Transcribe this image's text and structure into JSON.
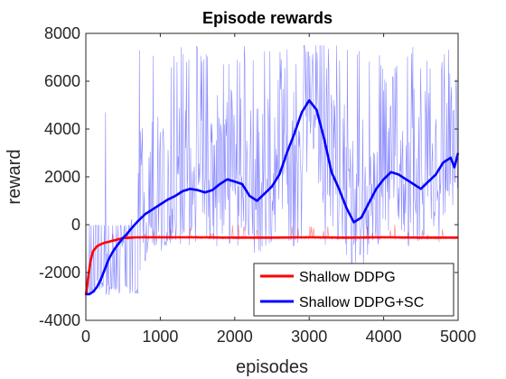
{
  "chart_data": {
    "type": "line",
    "title": "Episode rewards",
    "xlabel": "episodes",
    "ylabel": "reward",
    "xlim": [
      0,
      5000
    ],
    "ylim": [
      -4000,
      8000
    ],
    "xticks": [
      0,
      1000,
      2000,
      3000,
      4000,
      5000
    ],
    "yticks": [
      -4000,
      -2000,
      0,
      2000,
      4000,
      6000,
      8000
    ],
    "grid": false,
    "legend_position": "bottom-right",
    "series": [
      {
        "name": "Shallow DDPG",
        "color": "#ff0000",
        "x": [
          0,
          20,
          40,
          60,
          80,
          100,
          150,
          200,
          250,
          300,
          350,
          400,
          450,
          500,
          600,
          700,
          800,
          1000,
          1500,
          2000,
          2500,
          3000,
          3500,
          4000,
          4500,
          5000
        ],
        "values": [
          -2950,
          -2500,
          -2000,
          -1600,
          -1300,
          -1100,
          -900,
          -820,
          -760,
          -720,
          -680,
          -640,
          -600,
          -560,
          -540,
          -530,
          -530,
          -530,
          -530,
          -540,
          -540,
          -530,
          -540,
          -530,
          -540,
          -540
        ]
      },
      {
        "name": "Shallow DDPG+SC",
        "color": "#0000ff",
        "x": [
          0,
          50,
          100,
          150,
          200,
          250,
          300,
          350,
          400,
          450,
          500,
          550,
          600,
          700,
          800,
          900,
          1000,
          1100,
          1200,
          1300,
          1400,
          1500,
          1600,
          1700,
          1800,
          1900,
          2000,
          2100,
          2200,
          2300,
          2400,
          2500,
          2600,
          2700,
          2800,
          2900,
          3000,
          3100,
          3200,
          3300,
          3400,
          3500,
          3600,
          3700,
          3800,
          3900,
          4000,
          4100,
          4200,
          4300,
          4400,
          4500,
          4600,
          4700,
          4800,
          4900,
          4950,
          5000
        ],
        "values": [
          -2900,
          -2900,
          -2800,
          -2600,
          -2300,
          -1900,
          -1500,
          -1200,
          -950,
          -750,
          -550,
          -400,
          -200,
          150,
          450,
          650,
          850,
          1050,
          1200,
          1400,
          1500,
          1450,
          1350,
          1450,
          1700,
          1900,
          1800,
          1700,
          1200,
          1000,
          1300,
          1600,
          2100,
          3000,
          3800,
          4700,
          5200,
          4800,
          3600,
          2200,
          1500,
          700,
          100,
          300,
          900,
          1500,
          1900,
          2200,
          2100,
          1900,
          1700,
          1500,
          1800,
          2100,
          2600,
          2800,
          2400,
          3000
        ]
      }
    ]
  }
}
